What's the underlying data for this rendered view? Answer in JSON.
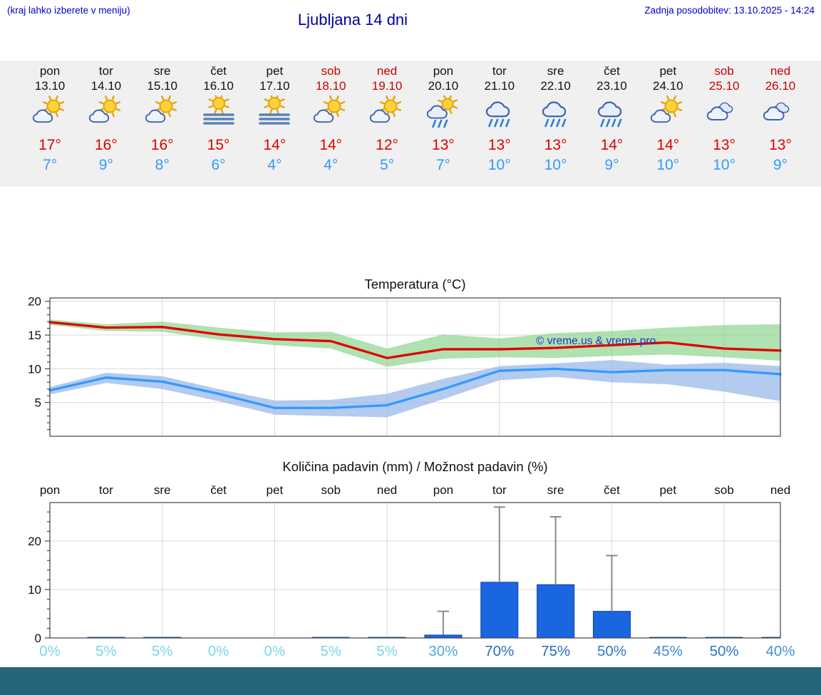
{
  "page": {
    "footer_color": "#26667a"
  },
  "header": {
    "left_note": "(kraj lahko izberete v meniju)",
    "title": "Ljubljana 14 dni",
    "last_update": "Zadnja posodobitev: 13.10.2025 - 14:24"
  },
  "colors": {
    "link_blue": "#0000cc",
    "title_blue": "#0000a0",
    "weekend_red": "#cc0000",
    "weekday_black": "#111111",
    "high_red": "#dd0000",
    "low_blue": "#3399ff",
    "strip_bg": "#f0f0f0"
  },
  "forecast_days": [
    {
      "day": "pon",
      "date": "13.10",
      "weekend": false,
      "icon": "sun-cloud",
      "high": "17°",
      "low": "7°"
    },
    {
      "day": "tor",
      "date": "14.10",
      "weekend": false,
      "icon": "sun-cloud",
      "high": "16°",
      "low": "9°"
    },
    {
      "day": "sre",
      "date": "15.10",
      "weekend": false,
      "icon": "sun-cloud",
      "high": "16°",
      "low": "8°"
    },
    {
      "day": "čet",
      "date": "16.10",
      "weekend": false,
      "icon": "fog-sun",
      "high": "15°",
      "low": "6°"
    },
    {
      "day": "pet",
      "date": "17.10",
      "weekend": false,
      "icon": "fog-sun",
      "high": "14°",
      "low": "4°"
    },
    {
      "day": "sob",
      "date": "18.10",
      "weekend": true,
      "icon": "sun-cloud",
      "high": "14°",
      "low": "4°"
    },
    {
      "day": "ned",
      "date": "19.10",
      "weekend": true,
      "icon": "sun-cloud",
      "high": "12°",
      "low": "5°"
    },
    {
      "day": "pon",
      "date": "20.10",
      "weekend": false,
      "icon": "sun-rain",
      "high": "13°",
      "low": "7°"
    },
    {
      "day": "tor",
      "date": "21.10",
      "weekend": false,
      "icon": "cloud-rain",
      "high": "13°",
      "low": "10°"
    },
    {
      "day": "sre",
      "date": "22.10",
      "weekend": false,
      "icon": "cloud-rain",
      "high": "13°",
      "low": "10°"
    },
    {
      "day": "čet",
      "date": "23.10",
      "weekend": false,
      "icon": "cloud-rain",
      "high": "14°",
      "low": "9°"
    },
    {
      "day": "pet",
      "date": "24.10",
      "weekend": false,
      "icon": "sun-cloud",
      "high": "14°",
      "low": "10°"
    },
    {
      "day": "sob",
      "date": "25.10",
      "weekend": true,
      "icon": "cloudy",
      "high": "13°",
      "low": "10°"
    },
    {
      "day": "ned",
      "date": "26.10",
      "weekend": true,
      "icon": "cloudy",
      "high": "13°",
      "low": "9°"
    }
  ],
  "chart_data": [
    {
      "type": "line",
      "title": "Temperatura (°C)",
      "categories": [
        "13.10",
        "14.10",
        "15.10",
        "16.10",
        "17.10",
        "18.10",
        "19.10",
        "20.10",
        "21.10",
        "22.10",
        "23.10",
        "24.10",
        "25.10",
        "26.10"
      ],
      "ylim": [
        0,
        20.5
      ],
      "yticks": [
        5,
        10,
        15,
        20
      ],
      "grid": true,
      "watermark": "© vreme.us & vreme.pro",
      "series": [
        {
          "name": "max-temp",
          "color": "#e00000",
          "values": [
            16.9,
            16.1,
            16.2,
            15.1,
            14.4,
            14.1,
            11.6,
            12.9,
            12.9,
            13.1,
            13.5,
            13.9,
            13.0,
            12.7
          ]
        },
        {
          "name": "min-temp",
          "color": "#3399ff",
          "values": [
            6.8,
            8.7,
            8.1,
            6.3,
            4.2,
            4.2,
            4.6,
            7.0,
            9.7,
            10.0,
            9.5,
            9.8,
            9.8,
            9.2
          ]
        }
      ],
      "bands": [
        {
          "name": "max-range",
          "color": "#8fd48f",
          "opacity": 0.7,
          "hi": [
            17.3,
            16.6,
            17.0,
            16.1,
            15.4,
            15.5,
            13.0,
            15.1,
            14.5,
            15.3,
            15.6,
            16.1,
            16.5,
            16.6
          ],
          "lo": [
            16.5,
            15.6,
            15.5,
            14.3,
            13.5,
            13.0,
            10.3,
            11.5,
            11.7,
            11.6,
            11.9,
            12.1,
            11.7,
            11.2
          ]
        },
        {
          "name": "min-range",
          "color": "#99b9ea",
          "opacity": 0.75,
          "hi": [
            7.3,
            9.4,
            8.9,
            7.0,
            5.3,
            5.4,
            6.3,
            8.5,
            10.4,
            10.8,
            11.3,
            10.6,
            10.9,
            10.4
          ],
          "lo": [
            6.2,
            7.9,
            7.0,
            5.2,
            3.2,
            3.0,
            2.8,
            5.5,
            8.3,
            8.8,
            8.0,
            7.7,
            6.6,
            5.2
          ]
        }
      ]
    },
    {
      "type": "bar",
      "title": "Količina padavin (mm) / Možnost padavin (%)",
      "categories": [
        "pon",
        "tor",
        "sre",
        "čet",
        "pet",
        "sob",
        "ned",
        "pon",
        "tor",
        "sre",
        "čet",
        "pet",
        "sob",
        "ned"
      ],
      "values_mm": [
        0,
        0.1,
        0.1,
        0,
        0,
        0.1,
        0.1,
        0.6,
        11.5,
        11,
        5.5,
        0.1,
        0.1,
        0.1
      ],
      "whisker_max_mm": [
        0,
        0,
        0,
        0,
        0,
        0,
        0,
        5.5,
        27,
        25,
        17,
        0,
        0,
        0
      ],
      "ylim": [
        0,
        28
      ],
      "yticks": [
        0,
        10,
        20
      ],
      "grid": true,
      "bar_color": "#1a66e0",
      "bar_edge_color": "#0d3fa0",
      "whisker_color": "#8a8a8a",
      "probabilities": [
        {
          "label": "0%",
          "color": "#7cd6e6"
        },
        {
          "label": "5%",
          "color": "#7cd6e6"
        },
        {
          "label": "5%",
          "color": "#7cd6e6"
        },
        {
          "label": "0%",
          "color": "#7cd6e6"
        },
        {
          "label": "0%",
          "color": "#7cd6e6"
        },
        {
          "label": "5%",
          "color": "#7cd6e6"
        },
        {
          "label": "5%",
          "color": "#7cd6e6"
        },
        {
          "label": "30%",
          "color": "#55a4d8"
        },
        {
          "label": "70%",
          "color": "#2b6cc4"
        },
        {
          "label": "75%",
          "color": "#2a69c2"
        },
        {
          "label": "50%",
          "color": "#3376c8"
        },
        {
          "label": "45%",
          "color": "#418bcf"
        },
        {
          "label": "50%",
          "color": "#3376c8"
        },
        {
          "label": "40%",
          "color": "#4590d2"
        }
      ]
    }
  ]
}
